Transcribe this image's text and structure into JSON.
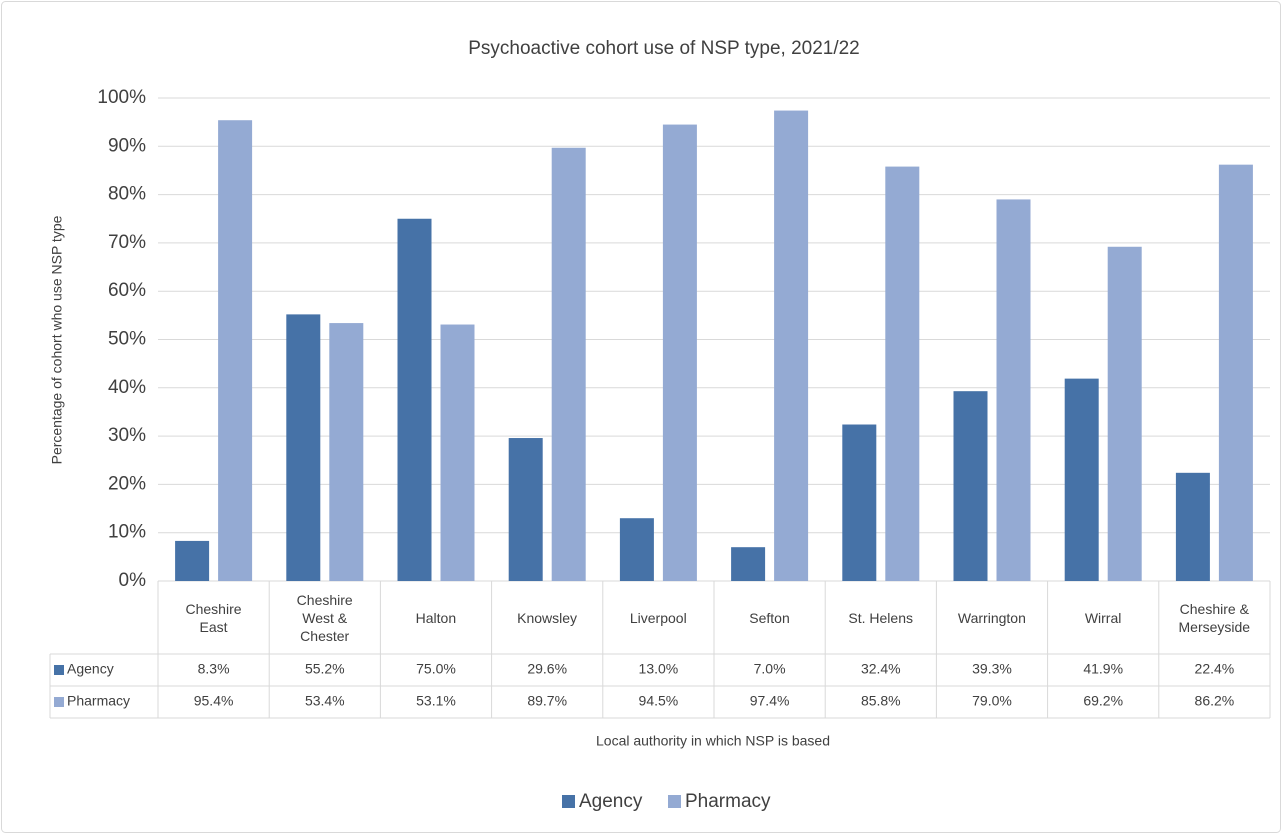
{
  "chart_data": {
    "type": "bar",
    "title": "Psychoactive cohort use of NSP type, 2021/22",
    "y_label": "Percentage of cohort who use NSP type",
    "x_label": "Local authority in which NSP is based",
    "categories": [
      "Cheshire East",
      "Cheshire West & Chester",
      "Halton",
      "Knowsley",
      "Liverpool",
      "Sefton",
      "St. Helens",
      "Warrington",
      "Wirral",
      "Cheshire & Merseyside"
    ],
    "series": [
      {
        "name": "Agency",
        "color": "#4672a7",
        "values": [
          8.3,
          55.2,
          75.0,
          29.6,
          13.0,
          7.0,
          32.4,
          39.3,
          41.9,
          22.4
        ],
        "value_labels": [
          "8.3%",
          "55.2%",
          "75.0%",
          "29.6%",
          "13.0%",
          "7.0%",
          "32.4%",
          "39.3%",
          "41.9%",
          "22.4%"
        ]
      },
      {
        "name": "Pharmacy",
        "color": "#94aad3",
        "values": [
          95.4,
          53.4,
          53.1,
          89.7,
          94.5,
          97.4,
          85.8,
          79.0,
          69.2,
          86.2
        ],
        "value_labels": [
          "95.4%",
          "53.4%",
          "53.1%",
          "89.7%",
          "94.5%",
          "97.4%",
          "85.8%",
          "79.0%",
          "69.2%",
          "86.2%"
        ]
      }
    ],
    "ylim": [
      0,
      100
    ],
    "yticks": [
      {
        "value": 0,
        "label": "0%"
      },
      {
        "value": 10,
        "label": "10%"
      },
      {
        "value": 20,
        "label": "20%"
      },
      {
        "value": 30,
        "label": "30%"
      },
      {
        "value": 40,
        "label": "40%"
      },
      {
        "value": 50,
        "label": "50%"
      },
      {
        "value": 60,
        "label": "60%"
      },
      {
        "value": 70,
        "label": "70%"
      },
      {
        "value": 80,
        "label": "80%"
      },
      {
        "value": 90,
        "label": "90%"
      },
      {
        "value": 100,
        "label": "100%"
      }
    ],
    "grid": true,
    "legend": "bottom"
  }
}
